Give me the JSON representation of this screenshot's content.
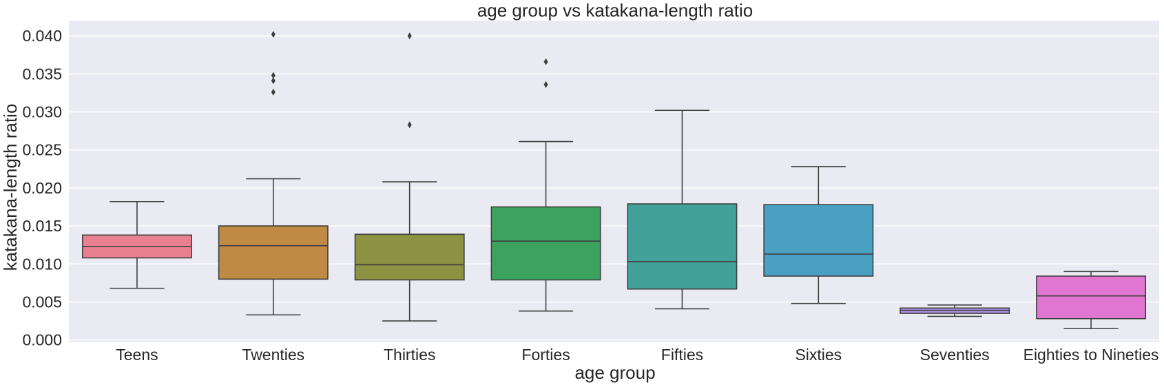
{
  "chart_data": {
    "type": "box",
    "title": "age group vs katakana-length ratio",
    "xlabel": "age group",
    "ylabel": "katakana-length ratio",
    "ylim": [
      -0.0003,
      0.042
    ],
    "yticks": [
      "0.000",
      "0.005",
      "0.010",
      "0.015",
      "0.020",
      "0.025",
      "0.030",
      "0.035",
      "0.040"
    ],
    "ytick_values": [
      0,
      0.005,
      0.01,
      0.015,
      0.02,
      0.025,
      0.03,
      0.035,
      0.04
    ],
    "grid": true,
    "background": "#EAEAF2",
    "categories": [
      "Teens",
      "Twenties",
      "Thirties",
      "Forties",
      "Fifties",
      "Sixties",
      "Seventies",
      "Eighties to Nineties"
    ],
    "boxes": [
      {
        "category": "Teens",
        "whislo": 0.0068,
        "q1": 0.0108,
        "med": 0.0123,
        "q3": 0.0138,
        "whishi": 0.0182,
        "fliers": [],
        "color": "#E8808F"
      },
      {
        "category": "Twenties",
        "whislo": 0.0033,
        "q1": 0.008,
        "med": 0.0124,
        "q3": 0.015,
        "whishi": 0.0212,
        "fliers": [
          0.0326,
          0.0341,
          0.0348,
          0.0402
        ],
        "color": "#BF8A44"
      },
      {
        "category": "Thirties",
        "whislo": 0.0025,
        "q1": 0.0079,
        "med": 0.0099,
        "q3": 0.0139,
        "whishi": 0.0208,
        "fliers": [
          0.0283,
          0.04
        ],
        "color": "#8B9242"
      },
      {
        "category": "Forties",
        "whislo": 0.0038,
        "q1": 0.0079,
        "med": 0.013,
        "q3": 0.0175,
        "whishi": 0.0261,
        "fliers": [
          0.0336,
          0.0366
        ],
        "color": "#3BA35F"
      },
      {
        "category": "Fifties",
        "whislo": 0.0041,
        "q1": 0.0067,
        "med": 0.0103,
        "q3": 0.0179,
        "whishi": 0.0302,
        "fliers": [],
        "color": "#42A199"
      },
      {
        "category": "Sixties",
        "whislo": 0.0048,
        "q1": 0.0084,
        "med": 0.0113,
        "q3": 0.0178,
        "whishi": 0.0228,
        "fliers": [],
        "color": "#49A0C2"
      },
      {
        "category": "Seventies",
        "whislo": 0.0031,
        "q1": 0.0035,
        "med": 0.0039,
        "q3": 0.0042,
        "whishi": 0.0046,
        "fliers": [],
        "color": "#A98FE0"
      },
      {
        "category": "Eighties to Nineties",
        "whislo": 0.0015,
        "q1": 0.0028,
        "med": 0.0058,
        "q3": 0.0084,
        "whishi": 0.009,
        "fliers": [],
        "color": "#E076D2"
      }
    ]
  }
}
